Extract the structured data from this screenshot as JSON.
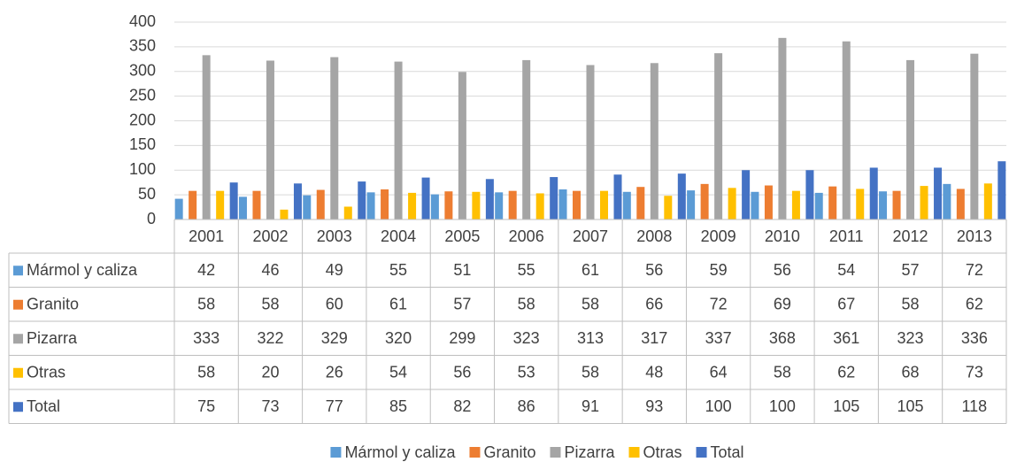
{
  "chart_data": {
    "type": "bar",
    "categories": [
      "2001",
      "2002",
      "2003",
      "2004",
      "2005",
      "2006",
      "2007",
      "2008",
      "2009",
      "2010",
      "2011",
      "2012",
      "2013"
    ],
    "series": [
      {
        "name": "Mármol y caliza",
        "color": "#5b9bd5",
        "values": [
          42,
          46,
          49,
          55,
          51,
          55,
          61,
          56,
          59,
          56,
          54,
          57,
          72
        ]
      },
      {
        "name": "Granito",
        "color": "#ed7d31",
        "values": [
          58,
          58,
          60,
          61,
          57,
          58,
          58,
          66,
          72,
          69,
          67,
          58,
          62
        ]
      },
      {
        "name": "Pizarra",
        "color": "#a5a5a5",
        "values": [
          333,
          322,
          329,
          320,
          299,
          323,
          313,
          317,
          337,
          368,
          361,
          323,
          336
        ]
      },
      {
        "name": "Otras",
        "color": "#ffc000",
        "values": [
          58,
          20,
          26,
          54,
          56,
          53,
          58,
          48,
          64,
          58,
          62,
          68,
          73
        ]
      },
      {
        "name": "Total",
        "color": "#4472c4",
        "values": [
          75,
          73,
          77,
          85,
          82,
          86,
          91,
          93,
          100,
          100,
          105,
          105,
          118
        ]
      }
    ],
    "ylim": [
      0,
      400
    ],
    "yticks": [
      0,
      50,
      100,
      150,
      200,
      250,
      300,
      350,
      400
    ],
    "grid": true,
    "legend": "bottom"
  }
}
